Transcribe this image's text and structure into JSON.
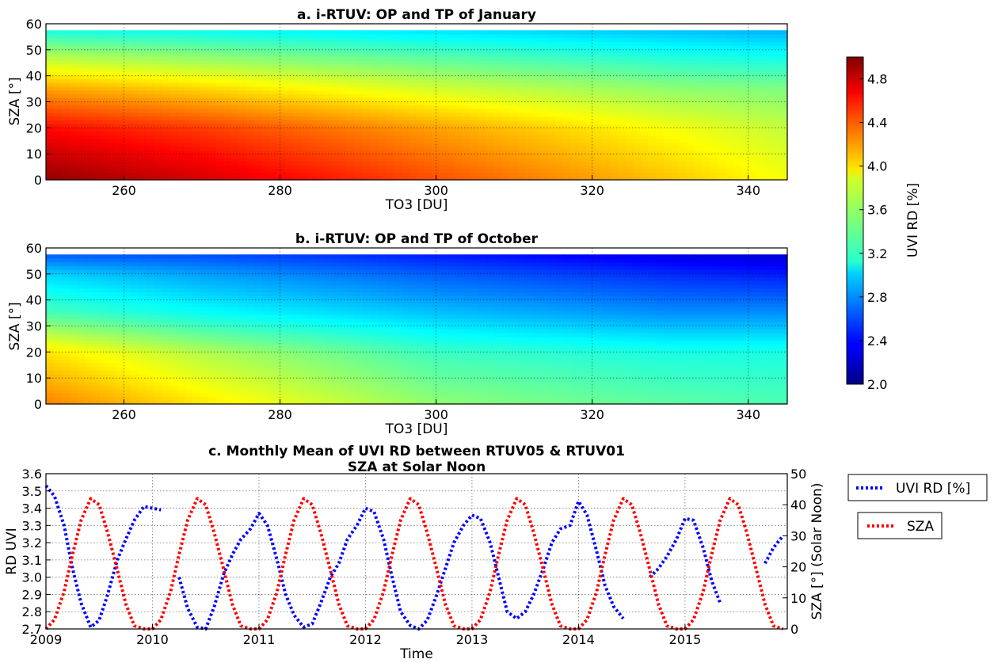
{
  "chart_data": [
    {
      "type": "heatmap",
      "title": "a. i-RTUV: OP and TP of January",
      "xlabel": "TO3 [DU]",
      "ylabel": "SZA [°]",
      "xlim": [
        250,
        345
      ],
      "ylim": [
        0,
        60
      ],
      "data_ylim": [
        0,
        57.5
      ],
      "xticks": [
        260,
        280,
        300,
        320,
        340
      ],
      "yticks": [
        0,
        10,
        20,
        30,
        40,
        50,
        60
      ],
      "grid": true,
      "value_field": {
        "description_units": "UVI RD [%]",
        "control_x": [
          250,
          270,
          300,
          330,
          345
        ],
        "control_y": [
          0,
          20,
          35,
          50,
          57.5
        ],
        "values": [
          [
            4.95,
            4.75,
            4.4,
            4.05,
            3.85
          ],
          [
            4.6,
            4.45,
            4.15,
            3.85,
            3.7
          ],
          [
            4.15,
            4.0,
            3.75,
            3.55,
            3.5
          ],
          [
            3.55,
            3.45,
            3.3,
            3.15,
            3.1
          ],
          [
            3.2,
            3.15,
            3.05,
            2.95,
            2.9
          ]
        ]
      }
    },
    {
      "type": "heatmap",
      "title": "b. i-RTUV: OP and TP of October",
      "xlabel": "TO3 [DU]",
      "ylabel": "SZA [°]",
      "xlim": [
        250,
        345
      ],
      "ylim": [
        0,
        60
      ],
      "data_ylim": [
        0,
        57.5
      ],
      "xticks": [
        260,
        280,
        300,
        320,
        340
      ],
      "yticks": [
        0,
        10,
        20,
        30,
        40,
        50,
        60
      ],
      "grid": true,
      "value_field": {
        "description_units": "UVI RD [%]",
        "control_x": [
          250,
          270,
          300,
          330,
          345
        ],
        "control_y": [
          0,
          20,
          35,
          50,
          57.5
        ],
        "values": [
          [
            4.25,
            3.95,
            3.55,
            3.4,
            3.35
          ],
          [
            3.95,
            3.65,
            3.3,
            3.2,
            3.2
          ],
          [
            3.35,
            3.15,
            2.95,
            2.8,
            2.8
          ],
          [
            3.0,
            2.85,
            2.65,
            2.5,
            2.45
          ],
          [
            2.65,
            2.6,
            2.45,
            2.3,
            2.25
          ]
        ]
      }
    },
    {
      "type": "colorbar",
      "label": "UVI RD [%]",
      "colormap": "jet",
      "vmin": 2.0,
      "vmax": 5.0,
      "ticks": [
        "2.0",
        "2.4",
        "2.8",
        "3.2",
        "3.6",
        "4.0",
        "4.4",
        "4.8"
      ]
    },
    {
      "type": "line",
      "title": "c. Monthly Mean of UVI RD between RTUV05 & RTUV01",
      "subtitle": "SZA at Solar Noon",
      "xlabel": "Time",
      "ylabel": "RD UVI",
      "ylabel_right": "SZA [°] (Solar Noon)",
      "xlim": [
        2009.0,
        2015.96
      ],
      "ylim": [
        2.7,
        3.6
      ],
      "ylim_right": [
        0,
        50
      ],
      "xticks": [
        "2009",
        "2010",
        "2011",
        "2012",
        "2013",
        "2014",
        "2015"
      ],
      "yticks": [
        "2.7",
        "2.8",
        "2.9",
        "3.0",
        "3.1",
        "3.2",
        "3.3",
        "3.4",
        "3.5",
        "3.6"
      ],
      "yticks_right": [
        "0",
        "10",
        "20",
        "30",
        "40",
        "50"
      ],
      "grid": true,
      "legend_placement": "right, outside",
      "series": [
        {
          "name": "UVI RD [%]",
          "color": "#0000ff",
          "axis": "left",
          "style": "dotted",
          "x": [
            2009.0,
            2009.08,
            2009.17,
            2009.25,
            2009.33,
            2009.42,
            2009.5,
            2009.58,
            2009.67,
            2009.75,
            2009.83,
            2009.92,
            2010.0,
            2010.08,
            null,
            2010.25,
            2010.33,
            2010.42,
            2010.5,
            2010.58,
            2010.67,
            2010.75,
            2010.83,
            2010.92,
            2011.0,
            2011.08,
            2011.17,
            2011.25,
            2011.33,
            2011.42,
            2011.5,
            2011.58,
            2011.67,
            2011.75,
            2011.83,
            2011.92,
            2012.0,
            2012.08,
            2012.17,
            2012.25,
            2012.33,
            2012.42,
            2012.5,
            2012.58,
            2012.67,
            2012.75,
            2012.83,
            2012.92,
            2013.0,
            2013.08,
            2013.17,
            2013.25,
            2013.33,
            2013.42,
            2013.5,
            2013.58,
            2013.67,
            2013.75,
            2013.83,
            2013.92,
            2014.0,
            2014.08,
            2014.17,
            2014.25,
            2014.33,
            2014.42,
            null,
            2014.67,
            2014.75,
            2014.83,
            2014.92,
            2015.0,
            2015.08,
            2015.17,
            2015.25,
            2015.33,
            null,
            2015.75,
            2015.83,
            2015.92
          ],
          "values": [
            3.53,
            3.47,
            3.3,
            3.05,
            2.85,
            2.71,
            2.75,
            2.9,
            3.1,
            3.22,
            3.33,
            3.41,
            3.4,
            3.39,
            null,
            3.0,
            2.82,
            2.71,
            2.7,
            2.83,
            3.02,
            3.13,
            3.22,
            3.28,
            3.37,
            3.3,
            3.1,
            2.9,
            2.78,
            2.71,
            2.73,
            2.85,
            3.0,
            3.08,
            3.22,
            3.3,
            3.4,
            3.38,
            3.22,
            3.0,
            2.8,
            2.72,
            2.7,
            2.75,
            2.9,
            3.05,
            3.2,
            3.3,
            3.36,
            3.34,
            3.2,
            3.0,
            2.8,
            2.76,
            2.8,
            2.9,
            3.05,
            3.2,
            3.28,
            3.3,
            3.44,
            3.36,
            3.15,
            2.95,
            2.83,
            2.76,
            null,
            3.0,
            3.05,
            3.12,
            3.22,
            3.34,
            3.33,
            3.17,
            2.98,
            2.85,
            null,
            3.08,
            3.17,
            3.24
          ]
        },
        {
          "name": "SZA",
          "color": "#ff0000",
          "axis": "right",
          "style": "dotted",
          "x": [
            2009.0,
            2009.08,
            2009.17,
            2009.25,
            2009.33,
            2009.42,
            2009.5,
            2009.58,
            2009.67,
            2009.75,
            2009.83,
            2009.92,
            2010.0,
            2010.08,
            2010.17,
            2010.25,
            2010.33,
            2010.42,
            2010.5,
            2010.58,
            2010.67,
            2010.75,
            2010.83,
            2010.92,
            2011.0,
            2011.08,
            2011.17,
            2011.25,
            2011.33,
            2011.42,
            2011.5,
            2011.58,
            2011.67,
            2011.75,
            2011.83,
            2011.92,
            2012.0,
            2012.08,
            2012.17,
            2012.25,
            2012.33,
            2012.42,
            2012.5,
            2012.58,
            2012.67,
            2012.75,
            2012.83,
            2012.92,
            2013.0,
            2013.08,
            2013.17,
            2013.25,
            2013.33,
            2013.42,
            2013.5,
            2013.58,
            2013.67,
            2013.75,
            2013.83,
            2013.92,
            2014.0,
            2014.08,
            2014.17,
            2014.25,
            2014.33,
            2014.42,
            2014.5,
            2014.58,
            2014.67,
            2014.75,
            2014.83,
            2014.92,
            2015.0,
            2015.08,
            2015.17,
            2015.25,
            2015.33,
            2015.42,
            2015.5,
            2015.58,
            2015.67,
            2015.75,
            2015.83,
            2015.92
          ],
          "values": [
            0,
            3,
            12,
            24,
            35,
            42,
            40,
            31,
            19,
            8,
            1,
            0,
            0,
            3,
            12,
            24,
            35,
            42,
            40,
            31,
            19,
            8,
            1,
            0,
            0,
            3,
            12,
            24,
            35,
            42,
            40,
            31,
            19,
            8,
            1,
            0,
            0,
            3,
            12,
            24,
            35,
            42,
            40,
            31,
            19,
            8,
            1,
            0,
            0,
            3,
            12,
            24,
            35,
            42,
            40,
            31,
            19,
            8,
            1,
            0,
            0,
            3,
            12,
            24,
            35,
            42,
            40,
            31,
            19,
            8,
            1,
            0,
            0,
            3,
            12,
            24,
            35,
            42,
            40,
            31,
            19,
            8,
            1,
            0
          ]
        }
      ]
    }
  ]
}
